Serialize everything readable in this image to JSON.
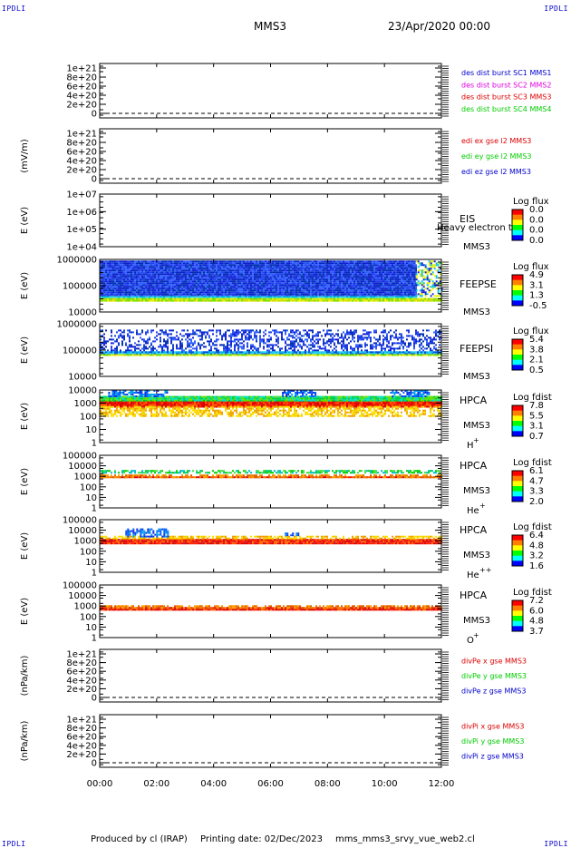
{
  "header": {
    "corner_label": "IPDLI",
    "spacecraft": "MMS3",
    "date": "23/Apr/2020 00:00"
  },
  "footer": {
    "produced_by": "Produced by cl (IRAP)",
    "printing_date": "Printing date: 02/Dec/2023",
    "script": "mms_mms3_srvy_vue_web2.cl"
  },
  "colors": {
    "red": "#dd0000",
    "magenta": "#dd00dd",
    "green": "#00cc00",
    "blue": "#0000cc"
  },
  "chart_data": {
    "type": "heatmap",
    "x_axis": {
      "range_hours": [
        0,
        12
      ],
      "tick_labels": [
        "00:00",
        "02:00",
        "04:00",
        "06:00",
        "08:00",
        "10:00",
        "12:00"
      ]
    },
    "panels": [
      {
        "id": "des-dist",
        "kind": "line",
        "ylabel": "",
        "ytick_labels": [
          "1e+21",
          "8e+20",
          "6e+20",
          "4e+20",
          "2e+20",
          "0"
        ],
        "ylim": [
          0,
          1e+21
        ],
        "dashed_zero": true,
        "legend": [
          {
            "text": "des dist burst SC1 MMS1",
            "color": "#0000cc"
          },
          {
            "text": "des dist burst SC2 MMS2",
            "color": "#dd00dd"
          },
          {
            "text": "des dist burst SC3 MMS3",
            "color": "#dd0000"
          },
          {
            "text": "des dist burst SC4 MMS4",
            "color": "#00cc00"
          }
        ]
      },
      {
        "id": "edi",
        "kind": "line",
        "ylabel": "(mV/m)",
        "ytick_labels": [
          "1e+21",
          "8e+20",
          "6e+20",
          "4e+20",
          "2e+20",
          "0"
        ],
        "ylim": [
          0,
          1e+21
        ],
        "dashed_zero": true,
        "legend": [
          {
            "text": "edi ex gse l2 MMS3",
            "color": "#dd0000"
          },
          {
            "text": "edi ey gse l2 MMS3",
            "color": "#00cc00"
          },
          {
            "text": "edi ez gse l2 MMS3",
            "color": "#0000cc"
          }
        ]
      },
      {
        "id": "eis",
        "kind": "spectrogram",
        "ylabel": "E (eV)",
        "ytick_labels": [
          "1e+07",
          "1e+06",
          "1e+05",
          "1e+04"
        ],
        "ylim": [
          10000,
          10000000
        ],
        "instrument": [
          "EIS",
          "MMS3"
        ],
        "overlay_text": "Heavy electron to",
        "colorbar": {
          "title": "Log flux",
          "ticks": [
            "0.0",
            "0.0",
            "0.0",
            "0.0"
          ]
        },
        "data": []
      },
      {
        "id": "feepse",
        "kind": "spectrogram",
        "ylabel": "E (eV)",
        "ytick_labels": [
          "1000000",
          "100000",
          "10000"
        ],
        "ylim": [
          10000,
          1000000
        ],
        "instrument": [
          "FEEPSE",
          "MMS3"
        ],
        "colorbar": {
          "title": "Log flux",
          "ticks": [
            "4.9",
            "3.1",
            "1.3",
            "-0.5"
          ]
        },
        "data": [
          {
            "e_range": [
              40000,
              900000
            ],
            "t_range": [
              0,
              11.1
            ],
            "level": "low-blue",
            "texture": "dense"
          },
          {
            "e_range": [
              34000,
              40000
            ],
            "t_range": [
              0,
              11.1
            ],
            "level": "cyan"
          },
          {
            "e_range": [
              28000,
              34000
            ],
            "t_range": [
              0,
              12
            ],
            "level": "green-yellow"
          },
          {
            "e_range": [
              40000,
              900000
            ],
            "t_range": [
              11.1,
              12
            ],
            "level": "gappy"
          }
        ]
      },
      {
        "id": "feepsi",
        "kind": "spectrogram",
        "ylabel": "E (eV)",
        "ytick_labels": [
          "1000000",
          "100000",
          "10000"
        ],
        "ylim": [
          10000,
          1000000
        ],
        "instrument": [
          "FEEPSI",
          "MMS3"
        ],
        "colorbar": {
          "title": "Log flux",
          "ticks": [
            "5.4",
            "3.8",
            "2.1",
            "0.5"
          ]
        },
        "data": [
          {
            "e_range": [
              90000,
              600000
            ],
            "t_range": [
              0,
              12
            ],
            "level": "low-blue",
            "texture": "sparse"
          },
          {
            "e_range": [
              70000,
              90000
            ],
            "t_range": [
              0,
              12
            ],
            "level": "blue-cyan"
          },
          {
            "e_range": [
              60000,
              70000
            ],
            "t_range": [
              0,
              12
            ],
            "level": "green-yellow"
          }
        ]
      },
      {
        "id": "hpca-h",
        "kind": "spectrogram",
        "ylabel": "E (eV)",
        "ytick_labels": [
          "10000",
          "1000",
          "100",
          "10",
          "1"
        ],
        "ylim": [
          1,
          10000
        ],
        "instrument": [
          "HPCA",
          "MMS3"
        ],
        "species": "H",
        "species_sup": "+",
        "colorbar": {
          "title": "Log fdist",
          "ticks": [
            "7.8",
            "5.5",
            "3.1",
            "0.7"
          ]
        },
        "data": [
          {
            "e_range": [
              600,
              1600
            ],
            "t_range": [
              0,
              12
            ],
            "level": "red-core"
          },
          {
            "e_range": [
              100,
              600
            ],
            "t_range": [
              0,
              12
            ],
            "level": "yellow-tail"
          },
          {
            "e_range": [
              1600,
              3500
            ],
            "t_range": [
              0,
              12
            ],
            "level": "green-cyan"
          },
          {
            "e_range": [
              3500,
              15000
            ],
            "t_range": [
              0.3,
              2.4
            ],
            "level": "blue-patch"
          },
          {
            "e_range": [
              3500,
              15000
            ],
            "t_range": [
              6.4,
              7.6
            ],
            "level": "blue-patch"
          },
          {
            "e_range": [
              3500,
              15000
            ],
            "t_range": [
              10.2,
              11.6
            ],
            "level": "blue-patch"
          }
        ]
      },
      {
        "id": "hpca-he",
        "kind": "spectrogram",
        "ylabel": "E (eV)",
        "ytick_labels": [
          "100000",
          "10000",
          "1000",
          "100",
          "10",
          "1"
        ],
        "ylim": [
          1,
          100000
        ],
        "instrument": [
          "HPCA",
          "MMS3"
        ],
        "species": "He",
        "species_sup": "+",
        "colorbar": {
          "title": "Log fdist",
          "ticks": [
            "6.1",
            "4.7",
            "3.3",
            "2.0"
          ]
        },
        "data": [
          {
            "e_range": [
              700,
              1000
            ],
            "t_range": [
              0,
              12
            ],
            "level": "red-core"
          },
          {
            "e_range": [
              1000,
              1500
            ],
            "t_range": [
              0,
              12
            ],
            "level": "orange-sparse"
          },
          {
            "e_range": [
              2000,
              4000
            ],
            "t_range": [
              0,
              12
            ],
            "level": "green-sparse"
          }
        ]
      },
      {
        "id": "hpca-hepp",
        "kind": "spectrogram",
        "ylabel": "E (eV)",
        "ytick_labels": [
          "100000",
          "10000",
          "1000",
          "100",
          "10",
          "1"
        ],
        "ylim": [
          1,
          100000
        ],
        "instrument": [
          "HPCA",
          "MMS3"
        ],
        "species": "He",
        "species_sup": "++",
        "colorbar": {
          "title": "Log fdist",
          "ticks": [
            "6.4",
            "4.8",
            "3.2",
            "1.6"
          ]
        },
        "data": [
          {
            "e_range": [
              500,
              1500
            ],
            "t_range": [
              0,
              12
            ],
            "level": "red-core"
          },
          {
            "e_range": [
              1500,
              3000
            ],
            "t_range": [
              0,
              12
            ],
            "level": "yellow-tail"
          },
          {
            "e_range": [
              3000,
              15000
            ],
            "t_range": [
              0.9,
              2.4
            ],
            "level": "blue-patch"
          },
          {
            "e_range": [
              3000,
              6000
            ],
            "t_range": [
              6.5,
              7.0
            ],
            "level": "blue-patch"
          }
        ]
      },
      {
        "id": "hpca-o",
        "kind": "spectrogram",
        "ylabel": "E (eV)",
        "ytick_labels": [
          "100000",
          "10000",
          "1000",
          "100",
          "10",
          "1"
        ],
        "ylim": [
          1,
          100000
        ],
        "instrument": [
          "HPCA",
          "MMS3"
        ],
        "species": "O",
        "species_sup": "+",
        "colorbar": {
          "title": "Log fdist",
          "ticks": [
            "7.2",
            "6.0",
            "4.8",
            "3.7"
          ]
        },
        "data": [
          {
            "e_range": [
              500,
              800
            ],
            "t_range": [
              0,
              12
            ],
            "level": "red-core"
          },
          {
            "e_range": [
              800,
              1200
            ],
            "t_range": [
              0,
              12
            ],
            "level": "orange-sparse"
          }
        ]
      },
      {
        "id": "divpe",
        "kind": "line",
        "ylabel": "(nPa/km)",
        "ytick_labels": [
          "1e+21",
          "8e+20",
          "6e+20",
          "4e+20",
          "2e+20",
          "0"
        ],
        "ylim": [
          0,
          1e+21
        ],
        "dashed_zero": true,
        "legend": [
          {
            "text": "divPe x gse MMS3",
            "color": "#dd0000"
          },
          {
            "text": "divPe y gse MMS3",
            "color": "#00cc00"
          },
          {
            "text": "divPe z gse MMS3",
            "color": "#0000cc"
          }
        ]
      },
      {
        "id": "divpi",
        "kind": "line",
        "ylabel": "(nPa/km)",
        "ytick_labels": [
          "1e+21",
          "8e+20",
          "6e+20",
          "4e+20",
          "2e+20",
          "0"
        ],
        "ylim": [
          0,
          1e+21
        ],
        "dashed_zero": true,
        "legend": [
          {
            "text": "divPi x gse MMS3",
            "color": "#dd0000"
          },
          {
            "text": "divPi y gse MMS3",
            "color": "#00cc00"
          },
          {
            "text": "divPi z gse MMS3",
            "color": "#0000cc"
          }
        ]
      }
    ]
  }
}
